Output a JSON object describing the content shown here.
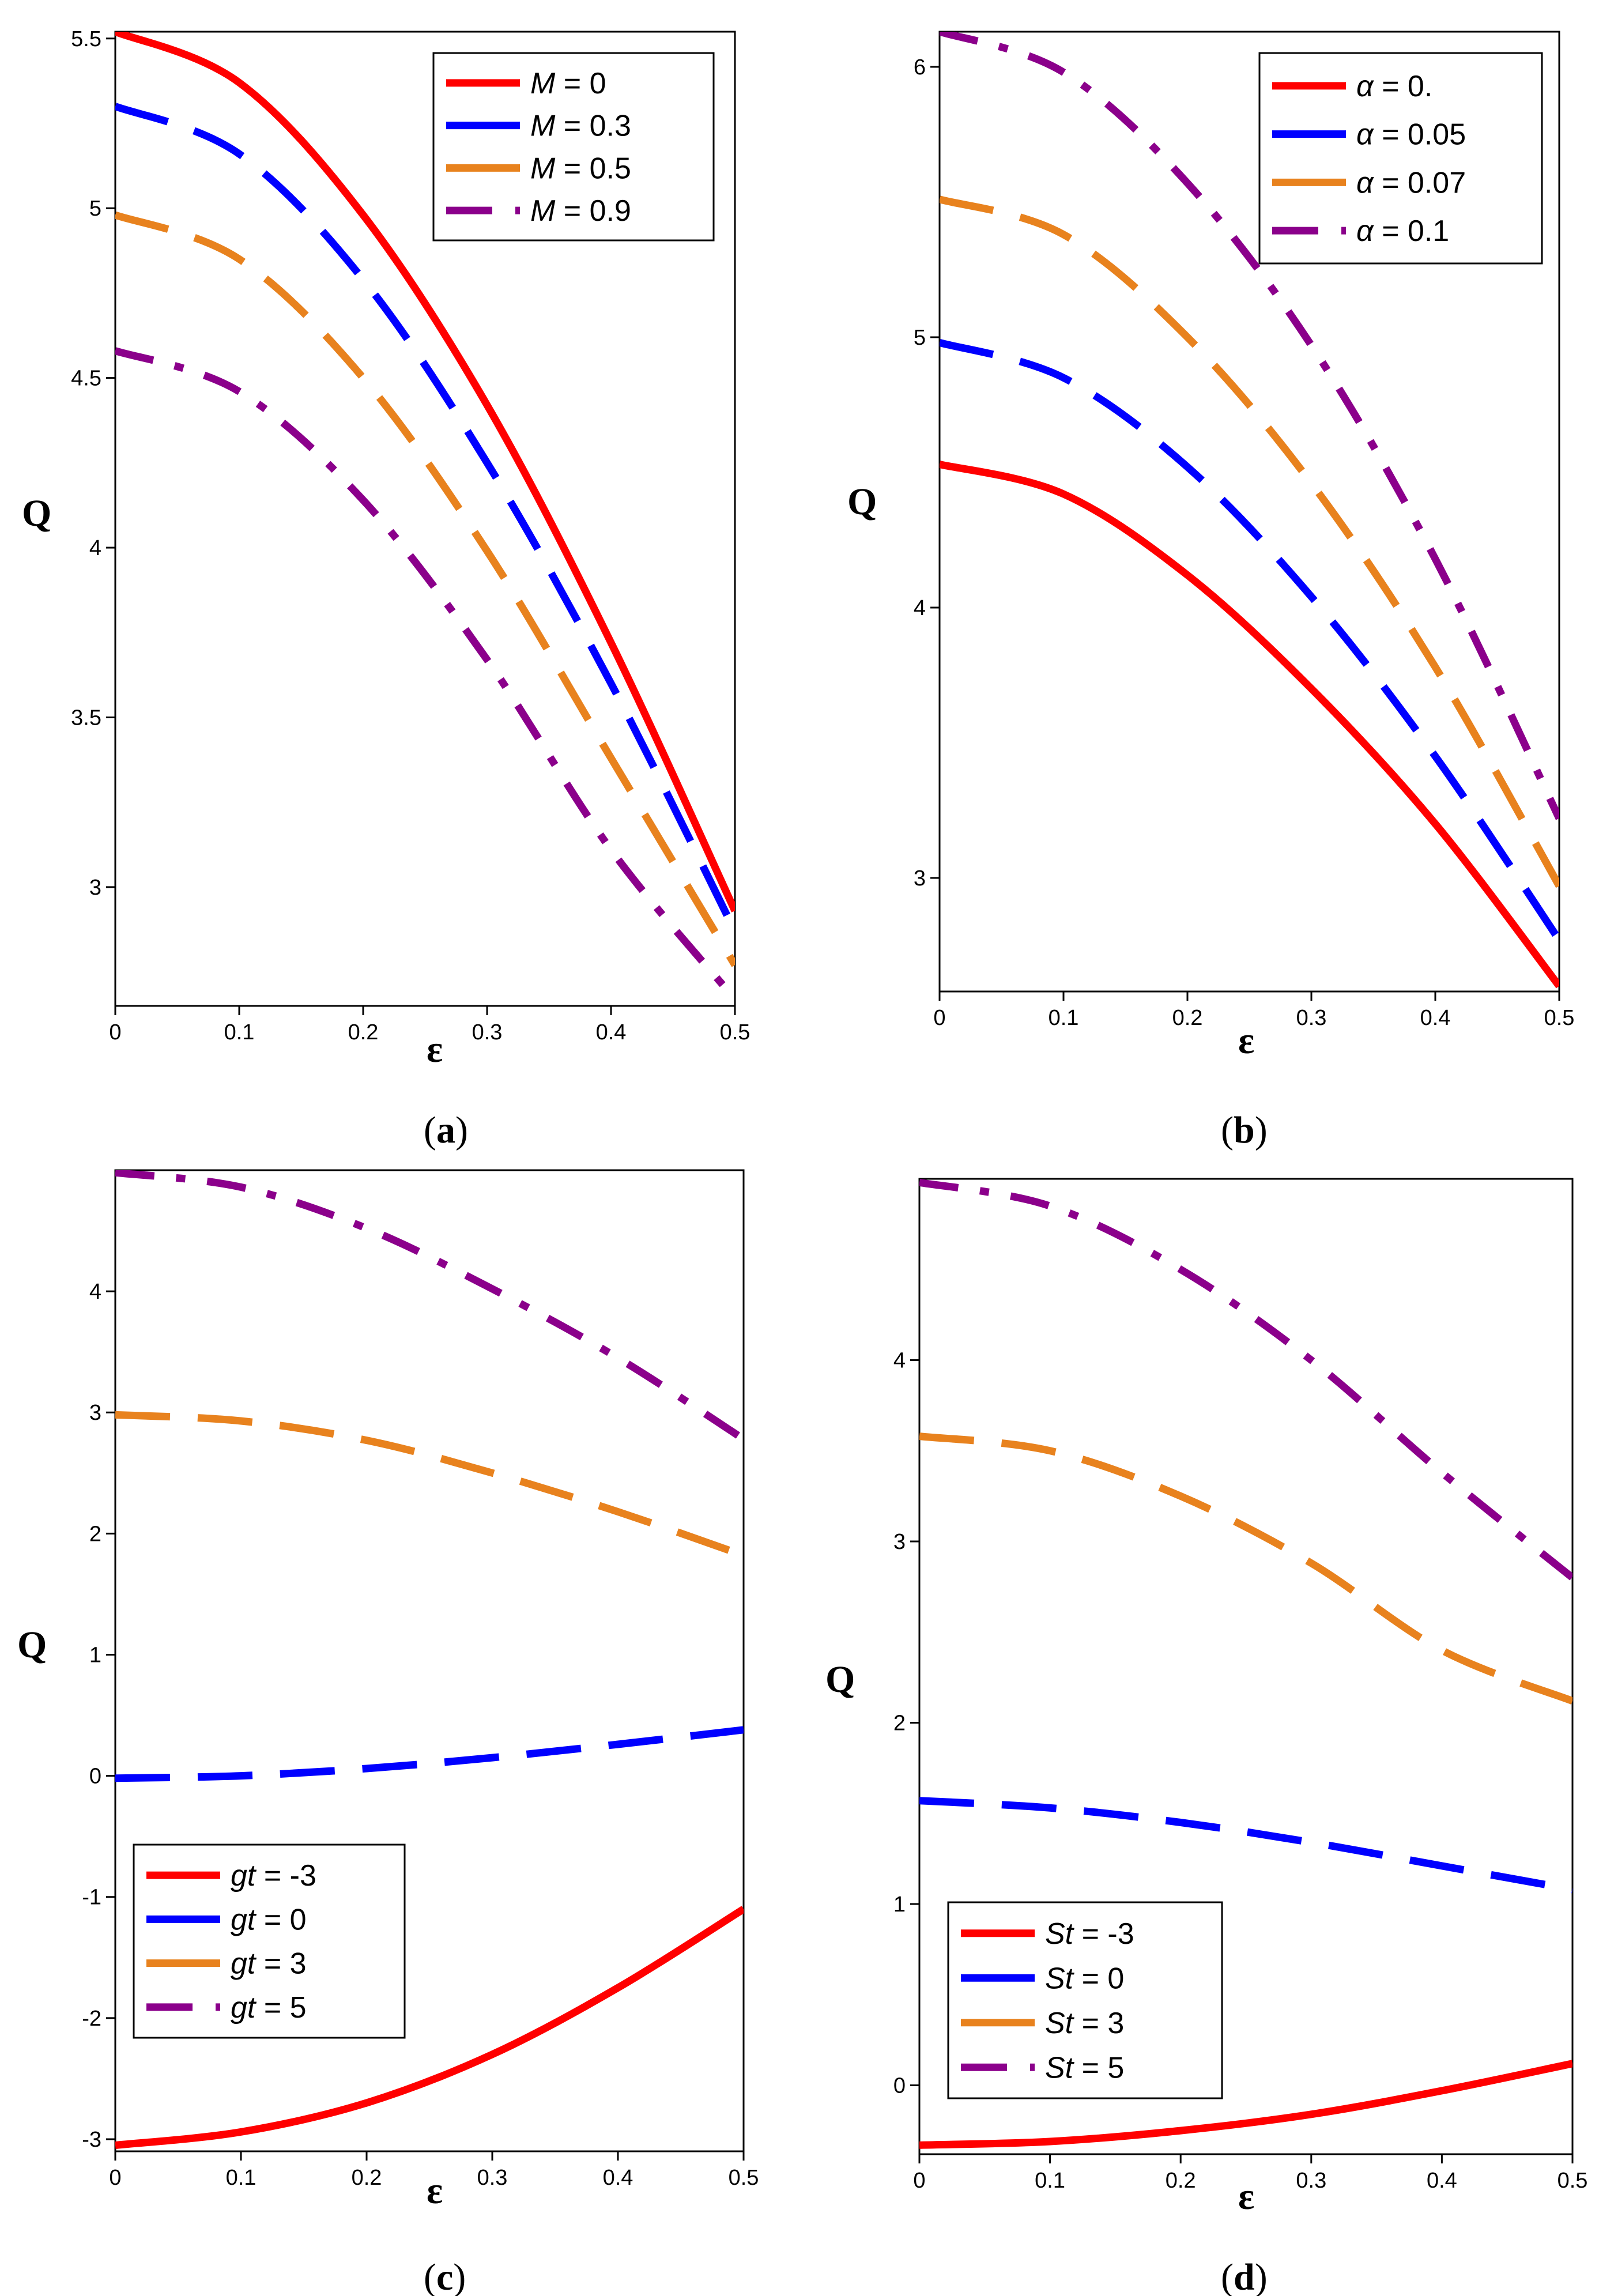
{
  "chart_data": [
    {
      "type": "line",
      "caption_letter": "a",
      "xlabel": "ε",
      "ylabel": "Q",
      "xlim": [
        0,
        0.5
      ],
      "ylim": [
        2.65,
        5.52
      ],
      "xticks": [
        0,
        0.1,
        0.2,
        0.3,
        0.4,
        0.5
      ],
      "xtick_labels": [
        "0",
        "0.1",
        "0.2",
        "0.3",
        "0.4",
        "0.5"
      ],
      "yticks": [
        3,
        3.5,
        4,
        4.5,
        5,
        5.5
      ],
      "ytick_labels": [
        "3",
        "3.5",
        "4",
        "4.5",
        "5",
        "5.5"
      ],
      "legend_position": "top-right",
      "x": [
        0,
        0.1,
        0.2,
        0.3,
        0.4,
        0.5
      ],
      "series": [
        {
          "name": "M = 0",
          "label_var": "M",
          "label_val": " = 0",
          "color": "#ff0000",
          "style": "solid",
          "values": [
            5.52,
            5.37,
            4.98,
            4.42,
            3.72,
            2.93
          ]
        },
        {
          "name": "M = 0.3",
          "label_var": "M",
          "label_val": " = 0.3",
          "color": "#0000ff",
          "style": "dash",
          "values": [
            5.3,
            5.16,
            4.79,
            4.25,
            3.6,
            2.87
          ]
        },
        {
          "name": "M = 0.5",
          "label_var": "M",
          "label_val": " = 0.5",
          "color": "#e8821e",
          "style": "dash",
          "values": [
            4.98,
            4.85,
            4.5,
            3.99,
            3.38,
            2.77
          ]
        },
        {
          "name": "M = 0.9",
          "label_var": "M",
          "label_val": " = 0.9",
          "color": "#8b008b",
          "style": "dashdot",
          "values": [
            4.58,
            4.46,
            4.14,
            3.67,
            3.11,
            2.67
          ]
        }
      ]
    },
    {
      "type": "line",
      "caption_letter": "b",
      "xlabel": "ε",
      "ylabel": "Q",
      "xlim": [
        0,
        0.5
      ],
      "ylim": [
        2.58,
        6.13
      ],
      "xticks": [
        0,
        0.1,
        0.2,
        0.3,
        0.4,
        0.5
      ],
      "xtick_labels": [
        "0",
        "0.1",
        "0.2",
        "0.3",
        "0.4",
        "0.5"
      ],
      "yticks": [
        3,
        4,
        5,
        6
      ],
      "ytick_labels": [
        "3",
        "4",
        "5",
        "6"
      ],
      "legend_position": "top-right",
      "x": [
        0,
        0.1,
        0.2,
        0.3,
        0.4,
        0.5
      ],
      "series": [
        {
          "name": "α = 0.",
          "label_var": "α",
          "label_val": " = 0.",
          "color": "#ff0000",
          "style": "solid",
          "values": [
            4.53,
            4.42,
            4.12,
            3.7,
            3.2,
            2.6
          ]
        },
        {
          "name": "α = 0.05",
          "label_var": "α",
          "label_val": " = 0.05",
          "color": "#0000ff",
          "style": "dash",
          "values": [
            4.98,
            4.85,
            4.52,
            4.04,
            3.45,
            2.77
          ]
        },
        {
          "name": "α = 0.07",
          "label_var": "α",
          "label_val": " = 0.07",
          "color": "#e8821e",
          "style": "dash",
          "values": [
            5.51,
            5.38,
            5.0,
            4.46,
            3.78,
            2.97
          ]
        },
        {
          "name": "α = 0.1",
          "label_var": "α",
          "label_val": " = 0.1",
          "color": "#8b008b",
          "style": "dashdot",
          "values": [
            6.13,
            5.98,
            5.57,
            4.97,
            4.18,
            3.22
          ]
        }
      ]
    },
    {
      "type": "line",
      "caption_letter": "c",
      "xlabel": "ε",
      "ylabel": "Q",
      "xlim": [
        0,
        0.5
      ],
      "ylim": [
        -3.1,
        5.0
      ],
      "xticks": [
        0,
        0.1,
        0.2,
        0.3,
        0.4,
        0.5
      ],
      "xtick_labels": [
        "0",
        "0.1",
        "0.2",
        "0.3",
        "0.4",
        "0.5"
      ],
      "yticks": [
        -3,
        -2,
        -1,
        0,
        1,
        2,
        3,
        4
      ],
      "ytick_labels": [
        "-3",
        "-2",
        "-1",
        "0",
        "1",
        "2",
        "3",
        "4"
      ],
      "legend_position": "bottom-left",
      "x": [
        0,
        0.1,
        0.2,
        0.3,
        0.4,
        0.5
      ],
      "series": [
        {
          "name": "gt = -3",
          "label_var": "gt",
          "label_val": " = -3",
          "color": "#ff0000",
          "style": "solid",
          "values": [
            -3.05,
            -2.94,
            -2.7,
            -2.3,
            -1.75,
            -1.1
          ]
        },
        {
          "name": "gt = 0",
          "label_var": "gt",
          "label_val": " = 0",
          "color": "#0000ff",
          "style": "dash",
          "values": [
            -0.02,
            0.0,
            0.06,
            0.15,
            0.26,
            0.38
          ]
        },
        {
          "name": "gt = 3",
          "label_var": "gt",
          "label_val": " = 3",
          "color": "#e8821e",
          "style": "dash",
          "values": [
            2.98,
            2.93,
            2.77,
            2.5,
            2.18,
            1.82
          ]
        },
        {
          "name": "gt = 5",
          "label_var": "gt",
          "label_val": " = 5",
          "color": "#8b008b",
          "style": "dashdot",
          "values": [
            4.98,
            4.86,
            4.52,
            4.02,
            3.45,
            2.78
          ]
        }
      ]
    },
    {
      "type": "line",
      "caption_letter": "d",
      "xlabel": "ε",
      "ylabel": "Q",
      "xlim": [
        0,
        0.5
      ],
      "ylim": [
        -0.38,
        5.0
      ],
      "xticks": [
        0,
        0.1,
        0.2,
        0.3,
        0.4,
        0.5
      ],
      "xtick_labels": [
        "0",
        "0.1",
        "0.2",
        "0.3",
        "0.4",
        "0.5"
      ],
      "yticks": [
        0,
        1,
        2,
        3,
        4
      ],
      "ytick_labels": [
        "0",
        "1",
        "2",
        "3",
        "4"
      ],
      "legend_position": "bottom-left",
      "x": [
        0,
        0.1,
        0.2,
        0.3,
        0.4,
        0.5
      ],
      "series": [
        {
          "name": "St = -3",
          "label_var": "St",
          "label_val": " = -3",
          "color": "#ff0000",
          "style": "solid",
          "values": [
            -0.33,
            -0.31,
            -0.25,
            -0.16,
            -0.03,
            0.12
          ]
        },
        {
          "name": "St = 0",
          "label_var": "St",
          "label_val": " = 0",
          "color": "#0000ff",
          "style": "dash",
          "values": [
            1.57,
            1.53,
            1.45,
            1.34,
            1.21,
            1.08
          ]
        },
        {
          "name": "St = 3",
          "label_var": "St",
          "label_val": " = 3",
          "color": "#e8821e",
          "style": "dash",
          "values": [
            3.58,
            3.5,
            3.25,
            2.88,
            2.4,
            2.12
          ]
        },
        {
          "name": "St = 5",
          "label_var": "St",
          "label_val": " = 5",
          "color": "#8b008b",
          "style": "dashdot",
          "values": [
            4.98,
            4.85,
            4.5,
            4.0,
            3.38,
            2.8
          ]
        }
      ]
    }
  ]
}
